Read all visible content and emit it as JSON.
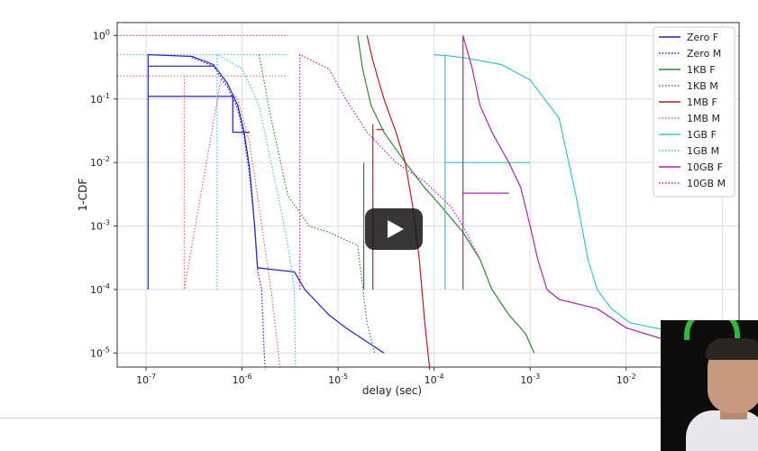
{
  "chart_data": {
    "type": "line",
    "xlabel": "delay (sec)",
    "ylabel": "1-CDF",
    "xscale": "log",
    "yscale": "log",
    "xlim": [
      5e-08,
      0.15
    ],
    "ylim": [
      6e-06,
      1.6
    ],
    "grid": true,
    "legend_placement": "top-right",
    "x_ticks": [
      {
        "value": 1e-07,
        "label": "10^-7"
      },
      {
        "value": 1e-06,
        "label": "10^-6"
      },
      {
        "value": 1e-05,
        "label": "10^-5"
      },
      {
        "value": 0.0001,
        "label": "10^-4"
      },
      {
        "value": 0.001,
        "label": "10^-3"
      },
      {
        "value": 0.01,
        "label": "10^-2"
      },
      {
        "value": 0.1,
        "label": "10^-1"
      }
    ],
    "y_ticks": [
      {
        "value": 1,
        "label": "10^0"
      },
      {
        "value": 0.1,
        "label": "10^-1"
      },
      {
        "value": 0.01,
        "label": "10^-2"
      },
      {
        "value": 0.001,
        "label": "10^-3"
      },
      {
        "value": 0.0001,
        "label": "10^-4"
      },
      {
        "value": 1e-05,
        "label": "10^-5"
      }
    ],
    "series": [
      {
        "name": "Zero F",
        "color": "#2020c8",
        "style": "solid",
        "points": [
          [
            1.05e-07,
            0.0001
          ],
          [
            1.05e-07,
            0.5
          ],
          [
            3e-07,
            0.47
          ],
          [
            5e-07,
            0.35
          ],
          [
            7e-07,
            0.18
          ],
          [
            9e-07,
            0.08
          ],
          [
            1.05e-06,
            0.03
          ],
          [
            1.2e-06,
            0.008
          ],
          [
            1.3e-06,
            0.002
          ],
          [
            1.35e-06,
            0.001
          ],
          [
            1.45e-06,
            0.00022
          ],
          [
            3.5e-06,
            0.00019
          ],
          [
            4.5e-06,
            0.0001
          ],
          [
            8e-06,
            4e-05
          ],
          [
            1.2e-05,
            2.5e-05
          ],
          [
            2e-05,
            1.5e-05
          ],
          [
            3e-05,
            1e-05
          ]
        ],
        "extra": [
          [
            [
              1.05e-07,
              0.11
            ],
            [
              8e-07,
              0.11
            ]
          ],
          [
            [
              1.05e-07,
              0.33
            ],
            [
              5e-07,
              0.33
            ]
          ],
          [
            [
              8e-07,
              0.11
            ],
            [
              8e-07,
              0.03
            ],
            [
              1.2e-06,
              0.03
            ]
          ]
        ]
      },
      {
        "name": "Zero M",
        "color": "#2020c8",
        "style": "dotted",
        "points": [
          [
            3e-07,
            0.45
          ],
          [
            5e-07,
            0.33
          ],
          [
            7e-07,
            0.16
          ],
          [
            9e-07,
            0.07
          ],
          [
            1.05e-06,
            0.025
          ],
          [
            1.2e-06,
            0.006
          ],
          [
            1.35e-06,
            0.001
          ],
          [
            1.45e-06,
            0.0002
          ],
          [
            1.6e-06,
            0.0001
          ],
          [
            1.7e-06,
            1e-05
          ],
          [
            1.75e-06,
            5.5e-06
          ]
        ]
      },
      {
        "name": "1KB F",
        "color": "#2a8a2a",
        "style": "solid",
        "points": [
          [
            1.6e-05,
            1
          ],
          [
            1.8e-05,
            0.3
          ],
          [
            2.2e-05,
            0.08
          ],
          [
            3e-05,
            0.03
          ],
          [
            5e-05,
            0.01
          ],
          [
            8e-05,
            0.004
          ],
          [
            0.00012,
            0.002
          ],
          [
            0.0002,
            0.0008
          ],
          [
            0.0003,
            0.0003
          ],
          [
            0.0004,
            0.0001
          ],
          [
            0.0006,
            4e-05
          ],
          [
            0.0009,
            2e-05
          ],
          [
            0.0011,
            1e-05
          ]
        ],
        "extra": [
          [
            [
              1.85e-05,
              0.0001
            ],
            [
              1.85e-05,
              0.01
            ]
          ]
        ]
      },
      {
        "name": "1KB M",
        "color": "#2a8a2a",
        "style": "dotted",
        "points": [
          [
            1.5e-06,
            0.5
          ],
          [
            2e-06,
            0.05
          ],
          [
            3e-06,
            0.003
          ],
          [
            5e-06,
            0.001
          ],
          [
            8e-06,
            0.0008
          ],
          [
            1.2e-05,
            0.0006
          ],
          [
            1.6e-05,
            0.0005
          ],
          [
            2e-05,
            3e-05
          ],
          [
            2.4e-05,
            1e-05
          ]
        ]
      },
      {
        "name": "1MB F",
        "color": "#c01818",
        "style": "solid",
        "points": [
          [
            2e-05,
            1
          ],
          [
            2.3e-05,
            0.4
          ],
          [
            3e-05,
            0.1
          ],
          [
            4e-05,
            0.03
          ],
          [
            5e-05,
            0.01
          ],
          [
            6e-05,
            0.002
          ],
          [
            7e-05,
            0.0003
          ],
          [
            8e-05,
            3e-05
          ],
          [
            9e-05,
            5.5e-06
          ]
        ],
        "extra": [
          [
            [
              2.3e-05,
              0.0001
            ],
            [
              2.3e-05,
              0.04
            ]
          ],
          [
            [
              2.5e-05,
              0.033
            ],
            [
              3e-05,
              0.033
            ]
          ]
        ]
      },
      {
        "name": "1MB M",
        "color": "#e06060",
        "style": "dotted",
        "points": [
          [
            2.5e-07,
            0.23
          ],
          [
            2.5e-07,
            0.0001
          ],
          [
            6e-07,
            0.2
          ],
          [
            9e-07,
            0.1
          ],
          [
            1.2e-06,
            0.02
          ],
          [
            1.5e-06,
            0.002
          ],
          [
            2e-06,
            0.0001
          ],
          [
            2.5e-06,
            5.5e-06
          ]
        ]
      },
      {
        "name": "1GB F",
        "color": "#30c8c8",
        "style": "solid",
        "points": [
          [
            0.0001,
            0.5
          ],
          [
            0.00014,
            0.48
          ],
          [
            0.0002,
            0.45
          ],
          [
            0.0005,
            0.35
          ],
          [
            0.001,
            0.2
          ],
          [
            0.002,
            0.05
          ],
          [
            0.003,
            0.003
          ],
          [
            0.004,
            0.0003
          ],
          [
            0.005,
            0.0001
          ],
          [
            0.007,
            5e-05
          ],
          [
            0.011,
            3e-05
          ],
          [
            0.04,
            2e-05
          ],
          [
            0.12,
            1.4e-05
          ]
        ],
        "extra": [
          [
            [
              0.00013,
              0.0001
            ],
            [
              0.00013,
              0.5
            ]
          ],
          [
            [
              0.00013,
              0.01
            ],
            [
              0.001,
              0.01
            ]
          ]
        ]
      },
      {
        "name": "1GB M",
        "color": "#30c8c8",
        "style": "dotted",
        "points": [
          [
            5.5e-07,
            0.0001
          ],
          [
            5.5e-07,
            0.5
          ],
          [
            1e-06,
            0.3
          ],
          [
            1.5e-06,
            0.08
          ],
          [
            2e-06,
            0.01
          ],
          [
            2.5e-06,
            0.002
          ],
          [
            3e-06,
            0.0005
          ],
          [
            3.5e-06,
            0.0001
          ],
          [
            3.6e-06,
            5.5e-06
          ]
        ]
      },
      {
        "name": "10GB F",
        "color": "#b020b0",
        "style": "solid",
        "points": [
          [
            0.0002,
            1
          ],
          [
            0.00025,
            0.3
          ],
          [
            0.0003,
            0.08
          ],
          [
            0.0004,
            0.03
          ],
          [
            0.0006,
            0.01
          ],
          [
            0.0008,
            0.004
          ],
          [
            0.001,
            0.001
          ],
          [
            0.0012,
            0.0003
          ],
          [
            0.0015,
            0.0001
          ],
          [
            0.002,
            7e-05
          ],
          [
            0.005,
            5e-05
          ],
          [
            0.01,
            2.5e-05
          ],
          [
            0.03,
            1.5e-05
          ],
          [
            0.1,
            1e-05
          ]
        ],
        "extra": [
          [
            [
              0.0002,
              0.0001
            ],
            [
              0.0002,
              1
            ]
          ],
          [
            [
              0.0002,
              0.0033
            ],
            [
              0.0006,
              0.0033
            ]
          ]
        ]
      },
      {
        "name": "10GB M",
        "color": "#b020b0",
        "style": "dotted",
        "points": [
          [
            4e-06,
            0.0001
          ],
          [
            4e-06,
            0.5
          ],
          [
            8e-06,
            0.3
          ],
          [
            1.2e-05,
            0.1
          ],
          [
            2e-05,
            0.03
          ],
          [
            4e-05,
            0.01
          ],
          [
            8e-05,
            0.005
          ],
          [
            0.00015,
            0.002
          ],
          [
            0.0002,
            0.001
          ],
          [
            0.0003,
            0.0003
          ]
        ]
      }
    ]
  }
}
